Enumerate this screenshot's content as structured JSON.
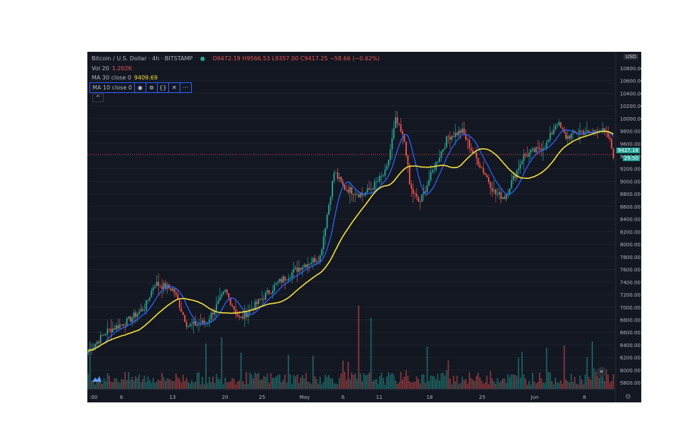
{
  "header": {
    "symbol": "Bitcoin / U.S. Dollar · 4h · BITSTAMP",
    "ohlc": "O9472.19  H9566.53  L9357.00  C9417.25  −58.66 (−0.62%)",
    "vol_label": "Vol 20",
    "vol_value": "1.202K",
    "ma30_label": "MA 30 close 0",
    "ma30_value": "9409.69",
    "ma10_label": "MA 10 close 0"
  },
  "currency_badge": "USD",
  "last_price_label": "9427.18",
  "countdown_label": "29:50",
  "colors": {
    "background": "#131722",
    "up": "#26a69a",
    "down": "#ef5350",
    "ma10": "#2962ff",
    "ma30": "#f7e03c",
    "grid": "#1e222d",
    "axis_text": "#b2b5be"
  },
  "icons": [
    "eye-icon",
    "settings-icon",
    "code-icon",
    "close-icon",
    "more-icon",
    "chevron-up-icon",
    "scroll-right-icon",
    "tradingview-logo",
    "gear-icon"
  ],
  "chart_data": {
    "type": "candlestick",
    "title": "Bitcoin / U.S. Dollar · 4h · BITSTAMP",
    "y_tick_labels": [
      "10800.00",
      "10600.00",
      "10400.00",
      "10200.00",
      "10000.00",
      "9800.00",
      "9600.00",
      "9400.00",
      "9200.00",
      "9000.00",
      "8800.00",
      "8600.00",
      "8400.00",
      "8200.00",
      "8000.00",
      "7800.00",
      "7600.00",
      "7400.00",
      "7200.00",
      "7000.00",
      "6800.00",
      "6600.00",
      "6400.00",
      "6200.00",
      "6000.00",
      "5800.00"
    ],
    "ylim": [
      5700,
      10900
    ],
    "x_tick_labels": [
      ":00",
      "6",
      "13",
      "20",
      "25",
      "May",
      "6",
      "11",
      "18",
      "25",
      "Jun",
      "8"
    ],
    "price_path": [
      [
        0,
        6300
      ],
      [
        4,
        6620
      ],
      [
        8,
        6760
      ],
      [
        12,
        7000
      ],
      [
        14,
        7380
      ],
      [
        18,
        7280
      ],
      [
        21,
        6700
      ],
      [
        25,
        6760
      ],
      [
        29,
        7250
      ],
      [
        32,
        6800
      ],
      [
        36,
        7080
      ],
      [
        40,
        7380
      ],
      [
        45,
        7650
      ],
      [
        49,
        7800
      ],
      [
        52,
        9150
      ],
      [
        54,
        8900
      ],
      [
        58,
        8780
      ],
      [
        60,
        8900
      ],
      [
        63,
        9150
      ],
      [
        65,
        9980
      ],
      [
        67,
        9600
      ],
      [
        68,
        8900
      ],
      [
        70,
        8650
      ],
      [
        73,
        9200
      ],
      [
        76,
        9700
      ],
      [
        79,
        9800
      ],
      [
        81,
        9500
      ],
      [
        84,
        9100
      ],
      [
        86,
        8800
      ],
      [
        88,
        8750
      ],
      [
        92,
        9400
      ],
      [
        95,
        9500
      ],
      [
        97,
        9600
      ],
      [
        99,
        9950
      ],
      [
        101,
        9700
      ],
      [
        104,
        9800
      ],
      [
        106,
        9750
      ],
      [
        108,
        9850
      ],
      [
        110,
        9700
      ],
      [
        111,
        9420
      ]
    ]
  }
}
